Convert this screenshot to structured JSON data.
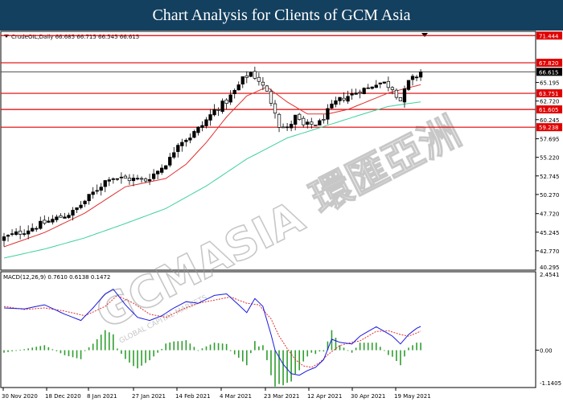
{
  "title": "Chart Analysis for Clients of GCM Asia",
  "symbol_info": "CrudeOIL,Daily  66.685 66.715 66.545 66.615",
  "watermark": {
    "main": "GCMASIA",
    "sub": "GLOBAL CAPITAL MARKETS",
    "chinese": "環匯亞洲"
  },
  "colors": {
    "banner": "#14405f",
    "up_candle": "#000000",
    "down_candle": "#ffffff",
    "ma_fast": "#e03030",
    "ma_slow": "#3ed19a",
    "level_line": "#e00000",
    "level_label": "#e00000",
    "price_label": "#000000",
    "macd_line": "#1a1ae0",
    "signal_line": "#e03030",
    "histogram": "#2f9e2f"
  },
  "chart_data": [
    {
      "type": "candlestick",
      "title": "",
      "instrument": "CrudeOIL",
      "timeframe": "Daily",
      "ohlc_current": {
        "open": 66.685,
        "high": 66.715,
        "low": 66.545,
        "close": 66.615
      },
      "ylim": [
        40.295,
        71.9
      ],
      "yticks": [
        42.77,
        45.245,
        47.72,
        50.27,
        52.745,
        55.22,
        57.695,
        60.245,
        62.72,
        65.195
      ],
      "ytick_labels": [
        "42.770",
        "45.245",
        "47.720",
        "50.270",
        "52.745",
        "55.220",
        "57.695",
        "60.245",
        "62.720",
        "65.195"
      ],
      "bottom_label": "40.295",
      "xlabels": [
        "30 Nov 2020",
        "18 Dec 2020",
        "8 Jan 2021",
        "27 Jan 2021",
        "14 Feb 2021",
        "4 Mar 2021",
        "23 Mar 2021",
        "12 Apr 2021",
        "30 Apr 2021",
        "19 May 2021"
      ],
      "levels": [
        71.444,
        67.82,
        63.751,
        61.605,
        59.238
      ],
      "level_labels": [
        "71.444",
        "67.820",
        "63.751",
        "61.605",
        "59.238"
      ],
      "current_price": 66.615,
      "current_price_label": "66.615",
      "close_anchors": [
        [
          0,
          44.5
        ],
        [
          5,
          45.4
        ],
        [
          10,
          46.5
        ],
        [
          14,
          47.3
        ],
        [
          17,
          47.9
        ],
        [
          20,
          49.4
        ],
        [
          23,
          51.0
        ],
        [
          26,
          52.6
        ],
        [
          29,
          52.4
        ],
        [
          32,
          52.3
        ],
        [
          35,
          52.2
        ],
        [
          38,
          53.4
        ],
        [
          41,
          55.0
        ],
        [
          43,
          57.2
        ],
        [
          46,
          58.0
        ],
        [
          49,
          59.5
        ],
        [
          52,
          61.5
        ],
        [
          55,
          62.7
        ],
        [
          57,
          64.0
        ],
        [
          59,
          65.6
        ],
        [
          61,
          66.5
        ],
        [
          63,
          65.5
        ],
        [
          65,
          63.8
        ],
        [
          67,
          61.5
        ],
        [
          68,
          59.5
        ],
        [
          70,
          59.0
        ],
        [
          72,
          60.6
        ],
        [
          74,
          59.4
        ],
        [
          76,
          59.6
        ],
        [
          78,
          59.8
        ],
        [
          80,
          61.3
        ],
        [
          82,
          62.5
        ],
        [
          84,
          63.2
        ],
        [
          86,
          63.6
        ],
        [
          88,
          64.2
        ],
        [
          90,
          64.4
        ],
        [
          92,
          65.2
        ],
        [
          94,
          65.1
        ],
        [
          96,
          64.5
        ],
        [
          98,
          62.8
        ],
        [
          100,
          65.2
        ],
        [
          102,
          66.1
        ],
        [
          103,
          66.6
        ]
      ],
      "ma_fast_anchors": [
        [
          0,
          43.3
        ],
        [
          10,
          45.2
        ],
        [
          20,
          47.8
        ],
        [
          30,
          51.3
        ],
        [
          40,
          52.4
        ],
        [
          45,
          54.3
        ],
        [
          50,
          57.2
        ],
        [
          55,
          60.6
        ],
        [
          60,
          63.4
        ],
        [
          65,
          64.6
        ],
        [
          70,
          62.6
        ],
        [
          75,
          61.0
        ],
        [
          80,
          61.0
        ],
        [
          85,
          61.6
        ],
        [
          90,
          62.7
        ],
        [
          95,
          63.8
        ],
        [
          100,
          64.5
        ],
        [
          103,
          64.9
        ]
      ],
      "ma_slow_anchors": [
        [
          0,
          41.8
        ],
        [
          10,
          43.0
        ],
        [
          20,
          44.5
        ],
        [
          30,
          46.4
        ],
        [
          40,
          48.4
        ],
        [
          50,
          51.4
        ],
        [
          60,
          55.0
        ],
        [
          70,
          57.8
        ],
        [
          80,
          59.5
        ],
        [
          90,
          61.2
        ],
        [
          95,
          62.0
        ],
        [
          100,
          62.4
        ],
        [
          103,
          62.6
        ]
      ]
    },
    {
      "type": "macd",
      "title": "MACD(12,26,9) 0.7610 0.6138 0.1472",
      "values": {
        "macd": 0.761,
        "signal": 0.6138,
        "histogram": 0.1472
      },
      "ylim": [
        -1.1405,
        2.4541
      ],
      "yticks": [
        0.0
      ],
      "ytick_labels": [
        "0.00"
      ],
      "top_label": "2.4541",
      "bottom_label": "-1.1405",
      "macd_anchors": [
        [
          0,
          1.35
        ],
        [
          5,
          1.32
        ],
        [
          10,
          1.45
        ],
        [
          15,
          1.15
        ],
        [
          19,
          0.95
        ],
        [
          22,
          1.35
        ],
        [
          25,
          1.8
        ],
        [
          27,
          1.95
        ],
        [
          30,
          1.45
        ],
        [
          33,
          1.05
        ],
        [
          36,
          0.95
        ],
        [
          39,
          1.1
        ],
        [
          42,
          1.35
        ],
        [
          45,
          1.55
        ],
        [
          48,
          1.5
        ],
        [
          52,
          1.75
        ],
        [
          55,
          1.8
        ],
        [
          58,
          1.45
        ],
        [
          60,
          1.2
        ],
        [
          62,
          1.65
        ],
        [
          64,
          1.4
        ],
        [
          66,
          0.5
        ],
        [
          67,
          0.0
        ],
        [
          69,
          -0.45
        ],
        [
          71,
          -0.75
        ],
        [
          73,
          -0.8
        ],
        [
          75,
          -0.65
        ],
        [
          77,
          -0.55
        ],
        [
          79,
          -0.3
        ],
        [
          81,
          0.35
        ],
        [
          83,
          0.25
        ],
        [
          86,
          0.2
        ],
        [
          88,
          0.45
        ],
        [
          90,
          0.6
        ],
        [
          92,
          0.75
        ],
        [
          94,
          0.6
        ],
        [
          96,
          0.45
        ],
        [
          98,
          0.2
        ],
        [
          100,
          0.5
        ],
        [
          102,
          0.7
        ],
        [
          103,
          0.76
        ]
      ],
      "signal_anchors": [
        [
          0,
          1.4
        ],
        [
          5,
          1.3
        ],
        [
          10,
          1.35
        ],
        [
          15,
          1.25
        ],
        [
          20,
          1.1
        ],
        [
          25,
          1.4
        ],
        [
          28,
          1.75
        ],
        [
          32,
          1.5
        ],
        [
          36,
          1.15
        ],
        [
          40,
          1.05
        ],
        [
          44,
          1.3
        ],
        [
          48,
          1.5
        ],
        [
          52,
          1.6
        ],
        [
          56,
          1.7
        ],
        [
          60,
          1.5
        ],
        [
          63,
          1.45
        ],
        [
          66,
          1.0
        ],
        [
          68,
          0.45
        ],
        [
          70,
          0.05
        ],
        [
          72,
          -0.3
        ],
        [
          74,
          -0.5
        ],
        [
          76,
          -0.55
        ],
        [
          78,
          -0.4
        ],
        [
          80,
          -0.15
        ],
        [
          83,
          0.15
        ],
        [
          86,
          0.25
        ],
        [
          88,
          0.3
        ],
        [
          90,
          0.45
        ],
        [
          92,
          0.6
        ],
        [
          95,
          0.62
        ],
        [
          98,
          0.5
        ],
        [
          100,
          0.45
        ],
        [
          102,
          0.55
        ],
        [
          103,
          0.61
        ]
      ]
    }
  ]
}
